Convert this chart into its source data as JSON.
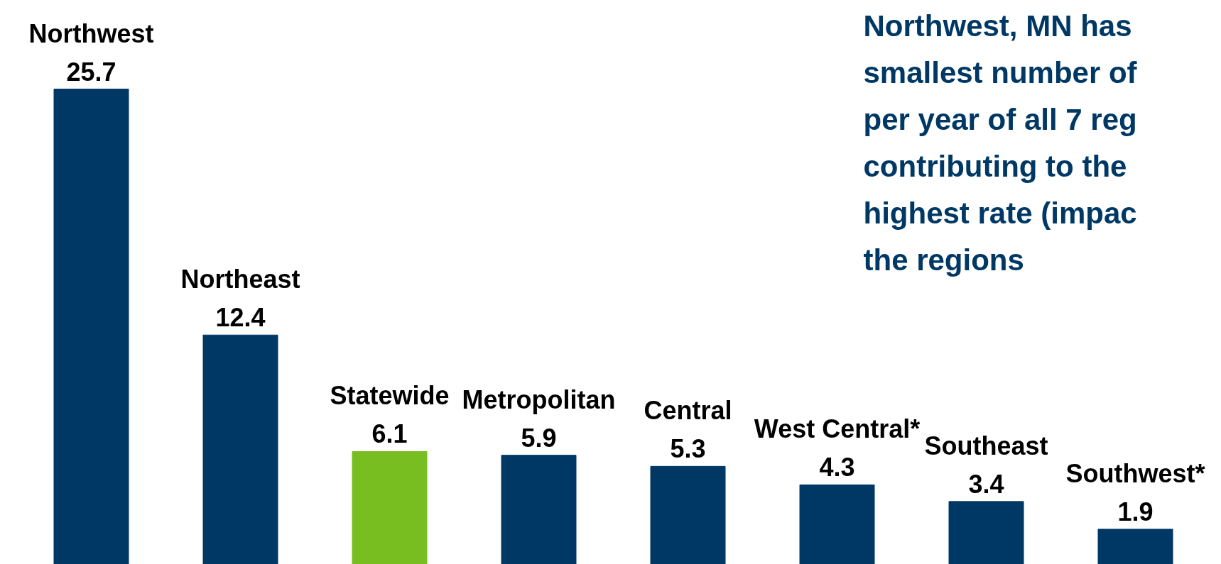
{
  "chart_data": {
    "type": "bar",
    "categories": [
      "Northwest",
      "Northeast",
      "Statewide",
      "Metropolitan",
      "Central",
      "West Central*",
      "Southeast",
      "Southwest*"
    ],
    "values": [
      25.7,
      12.4,
      6.1,
      5.9,
      5.3,
      4.3,
      3.4,
      1.9
    ],
    "colors": [
      "#003865",
      "#003865",
      "#78be20",
      "#003865",
      "#003865",
      "#003865",
      "#003865",
      "#003865"
    ],
    "data_labels": true,
    "grid": false,
    "tick_labels": false,
    "annotations": [
      "Northwest, MN has\nsmallest number of\nper year of all 7 reg\ncontributing to the\nhighest rate (impac\nthe regions"
    ]
  }
}
